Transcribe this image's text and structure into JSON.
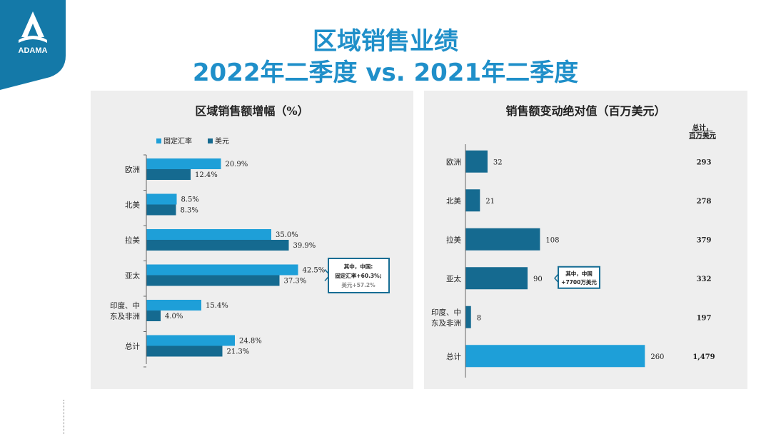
{
  "brand": {
    "name": "ADAMA",
    "color": "#1479a8"
  },
  "header": {
    "title": "区域销售业绩",
    "subtitle": "2022年二季度 vs. 2021年二季度"
  },
  "colors": {
    "fixed_fx": "#1e9fd8",
    "usd": "#156a90",
    "panel_bg": "#eeeeee"
  },
  "chart_data": [
    {
      "type": "bar",
      "orientation": "horizontal",
      "title": "区域销售额增幅（%）",
      "categories": [
        "欧洲",
        "北美",
        "拉美",
        "亚太",
        "印度、中东及非洲",
        "总计"
      ],
      "category_lines": [
        [
          "欧洲"
        ],
        [
          "北美"
        ],
        [
          "拉美"
        ],
        [
          "亚太"
        ],
        [
          "印度、中",
          "东及非洲"
        ],
        [
          "总计"
        ]
      ],
      "series": [
        {
          "name": "固定汇率",
          "values": [
            20.9,
            8.5,
            35.0,
            42.5,
            15.4,
            24.8
          ],
          "labels": [
            "20.9%",
            "8.5%",
            "35.0%",
            "42.5%",
            "15.4%",
            "24.8%"
          ]
        },
        {
          "name": "美元",
          "values": [
            12.4,
            8.3,
            39.9,
            37.3,
            4.0,
            21.3
          ],
          "labels": [
            "12.4%",
            "8.3%",
            "39.9%",
            "37.3%",
            "4.0%",
            "21.3%"
          ]
        }
      ],
      "xlim": [
        0,
        50
      ],
      "legend": "top-left",
      "annotation": {
        "category": "亚太",
        "lines": [
          "其中，中国:",
          "固定汇率+60.3%;",
          "美元+57.2%"
        ]
      }
    },
    {
      "type": "bar",
      "orientation": "horizontal",
      "title": "销售额变动绝对值（百万美元）",
      "categories": [
        "欧洲",
        "北美",
        "拉美",
        "亚太",
        "印度、中东及非洲",
        "总计"
      ],
      "category_lines": [
        [
          "欧洲"
        ],
        [
          "北美"
        ],
        [
          "拉美"
        ],
        [
          "亚太"
        ],
        [
          "印度、中",
          "东及非洲"
        ],
        [
          "总计"
        ]
      ],
      "values": [
        32,
        21,
        108,
        90,
        8,
        260
      ],
      "value_labels": [
        "32",
        "21",
        "108",
        "90",
        "8",
        "260"
      ],
      "xlim": [
        0,
        300
      ],
      "totals_header": [
        "总计，",
        "百万美元"
      ],
      "totals": [
        "293",
        "278",
        "379",
        "332",
        "197",
        "1,479"
      ],
      "annotation": {
        "category": "亚太",
        "lines": [
          "其中，中国",
          "+7700万美元"
        ]
      }
    }
  ]
}
